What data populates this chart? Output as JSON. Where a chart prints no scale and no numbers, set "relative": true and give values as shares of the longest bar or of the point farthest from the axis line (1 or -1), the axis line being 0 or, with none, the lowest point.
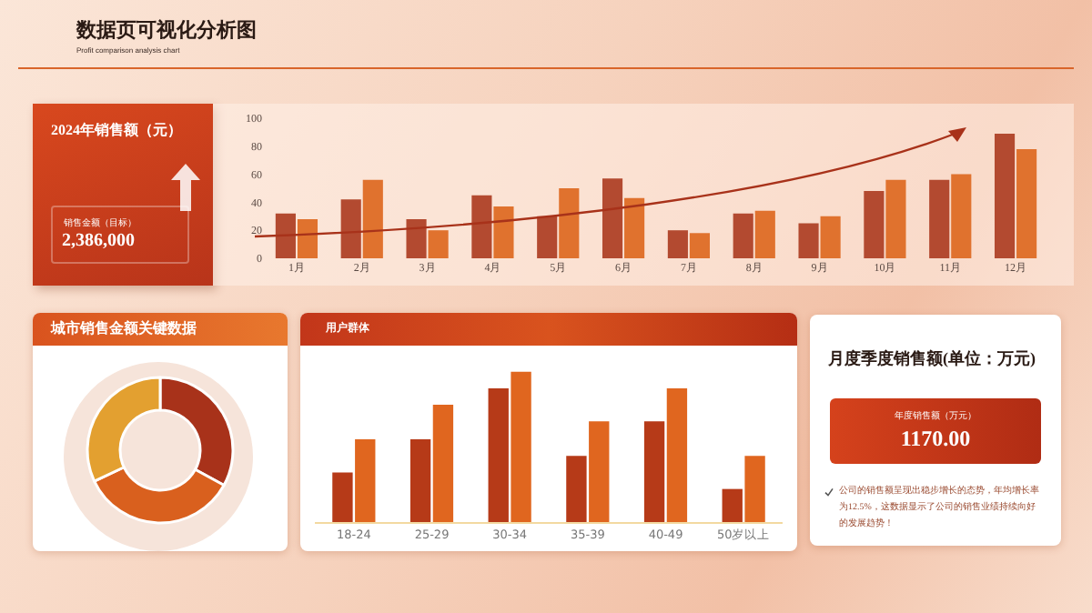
{
  "chart_data": [
    {
      "type": "other",
      "title": "数据页可视化分析图",
      "subtitle": "Profit comparison analysis chart"
    },
    {
      "type": "bar",
      "title": "2024年销售额（元）",
      "annotations": [
        "销售金额（目标）",
        "2,386,000"
      ],
      "categories": [
        "1月",
        "2月",
        "3月",
        "4月",
        "5月",
        "6月",
        "7月",
        "8月",
        "9月",
        "10月",
        "11月",
        "12月"
      ],
      "series": [
        {
          "color": "#b34a30",
          "values": [
            32,
            42,
            28,
            45,
            30,
            57,
            20,
            32,
            25,
            48,
            56,
            89
          ]
        },
        {
          "color": "#e0722e",
          "values": [
            28,
            56,
            20,
            37,
            50,
            43,
            18,
            34,
            30,
            56,
            60,
            78
          ]
        }
      ],
      "ylim": [
        0,
        100
      ],
      "yticks": [
        0,
        20,
        40,
        60,
        80,
        100
      ]
    },
    {
      "type": "donut",
      "title": "城市销售金额关键数据",
      "categories": [
        null,
        null,
        null
      ],
      "values": [
        33,
        35,
        32
      ],
      "colors": [
        "#a8321a",
        "#d9601e",
        "#e3a030"
      ]
    },
    {
      "type": "bar",
      "title": "用户群体",
      "relative": true,
      "categories": [
        "18-24",
        "25-29",
        "30-34",
        "35-39",
        "40-49",
        "50岁以上"
      ],
      "series": [
        {
          "color": "#b63a18",
          "values": [
            0.33,
            0.55,
            0.89,
            0.44,
            0.67,
            0.22
          ]
        },
        {
          "color": "#e0661f",
          "values": [
            0.55,
            0.78,
            1,
            0.67,
            0.89,
            0.44
          ]
        }
      ]
    },
    {
      "type": "other",
      "title": "月度季度销售额(单位：万元)",
      "annotations": [
        "年度销售额（万元）",
        "1170.00",
        "公司的销售额呈现出稳步增长的态势，年均增长率为12.5%，这数据显示了公司的销售业绩持续向好的发展趋势！"
      ]
    }
  ]
}
